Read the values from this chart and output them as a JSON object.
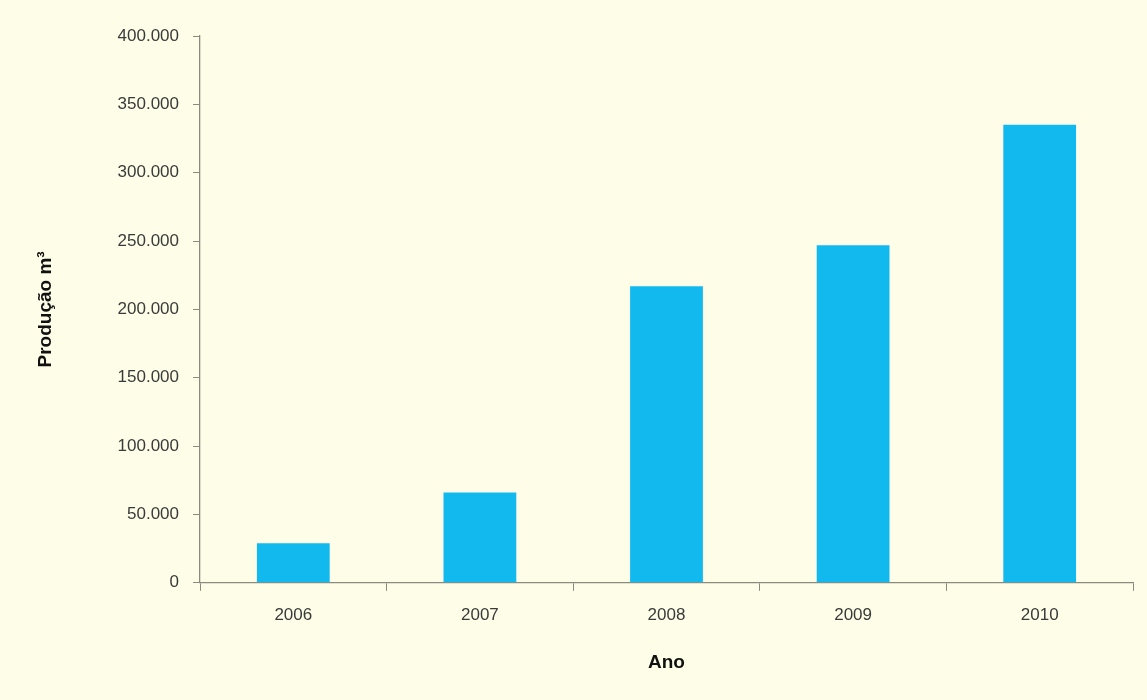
{
  "chart_data": {
    "type": "bar",
    "categories": [
      "2006",
      "2007",
      "2008",
      "2009",
      "2010"
    ],
    "values": [
      29000,
      66000,
      217000,
      247000,
      335000
    ],
    "color": "#12b9ee",
    "xlabel": "Ano",
    "ylabel": "Produção m³",
    "ylim": [
      0,
      400000
    ],
    "yticks": [
      0,
      {
        "value": 50000,
        "label": "50.000"
      },
      {
        "value": 100000,
        "label": "100.000"
      },
      {
        "value": 150000,
        "label": "150.000"
      },
      {
        "value": 200000,
        "label": "200.000"
      },
      {
        "value": 250000,
        "label": "250.000"
      },
      {
        "value": 300000,
        "label": "300.000"
      },
      {
        "value": 350000,
        "label": "350.000"
      },
      {
        "value": 400000,
        "label": "400.000"
      }
    ],
    "grid": false,
    "legend": false
  }
}
